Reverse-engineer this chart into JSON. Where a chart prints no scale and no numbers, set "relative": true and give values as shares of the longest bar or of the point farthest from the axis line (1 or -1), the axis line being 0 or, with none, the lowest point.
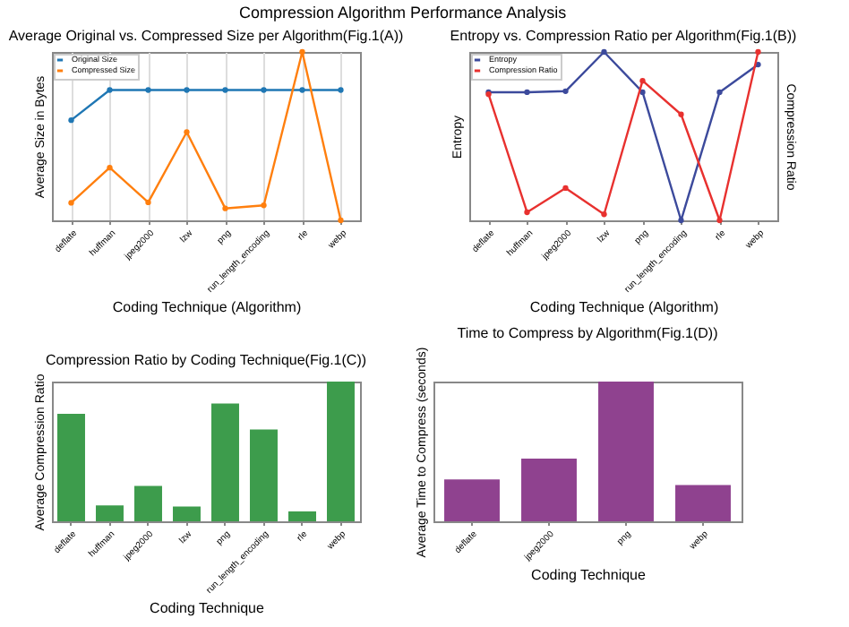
{
  "chart_data": [
    {
      "type": "line",
      "title": "Average Original vs. Compressed Size per Algorithm(Fig.1(A))",
      "annotations": [
        "Compression Algorithm Performance Analysis"
      ],
      "xlabel": "Coding Technique (Algorithm)",
      "ylabel": "Average Size in Bytes",
      "relative": true,
      "categories": [
        "deflate",
        "huffman",
        "jpeg2000",
        "lzw",
        "png",
        "run_length_encoding",
        "rle",
        "webp"
      ],
      "series": [
        {
          "name": "Original Size",
          "color": "#1f77b4",
          "values": [
            0.595,
            0.774,
            0.774,
            0.774,
            0.774,
            0.774,
            0.774,
            0.774
          ]
        },
        {
          "name": "Compressed Size",
          "color": "#ff7f0e",
          "values": [
            0.104,
            0.313,
            0.107,
            0.524,
            0.071,
            0.089,
            1,
            0
          ]
        }
      ],
      "marker": "circle",
      "grid": "x",
      "legend": "top left"
    },
    {
      "type": "line",
      "title": "Entropy vs. Compression Ratio per Algorithm(Fig.1(B))",
      "xlabel": "Coding Technique (Algorithm)",
      "ylabel": "Entropy",
      "y2label": "Compression Ratio",
      "relative": true,
      "categories": [
        "deflate",
        "huffman",
        "jpeg2000",
        "lzw",
        "png",
        "run_length_encoding",
        "rle",
        "webp"
      ],
      "series": [
        {
          "name": "Entropy",
          "color": "#3c4a9c",
          "values": [
            0.761,
            0.761,
            0.767,
            1,
            0.761,
            0,
            0.761,
            0.925
          ]
        },
        {
          "name": "Compression Ratio",
          "color": "#e8312f",
          "axis": "y2",
          "values": [
            0.749,
            0.048,
            0.192,
            0.036,
            0.829,
            0.629,
            0,
            1
          ]
        }
      ],
      "marker": "circle",
      "legend": "top left"
    },
    {
      "type": "bar",
      "title": "Compression Ratio by Coding Technique(Fig.1(C))",
      "xlabel": "Coding Technique",
      "ylabel": "Average Compression Ratio",
      "relative": true,
      "categories": [
        "deflate",
        "huffman",
        "jpeg2000",
        "lzw",
        "png",
        "run_length_encoding",
        "rle",
        "webp"
      ],
      "values": [
        0.769,
        0.114,
        0.254,
        0.106,
        0.843,
        0.657,
        0.071,
        1
      ],
      "color": "#3d9c4c"
    },
    {
      "type": "bar",
      "title": "Time to Compress by Algorithm(Fig.1(D))",
      "xlabel": "Coding Technique",
      "ylabel": "Average Time to Compress (seconds)",
      "relative": true,
      "categories": [
        "deflate",
        "jpeg2000",
        "png",
        "webp"
      ],
      "values": [
        0.3,
        0.449,
        1,
        0.26
      ],
      "color": "#8f428f"
    }
  ]
}
